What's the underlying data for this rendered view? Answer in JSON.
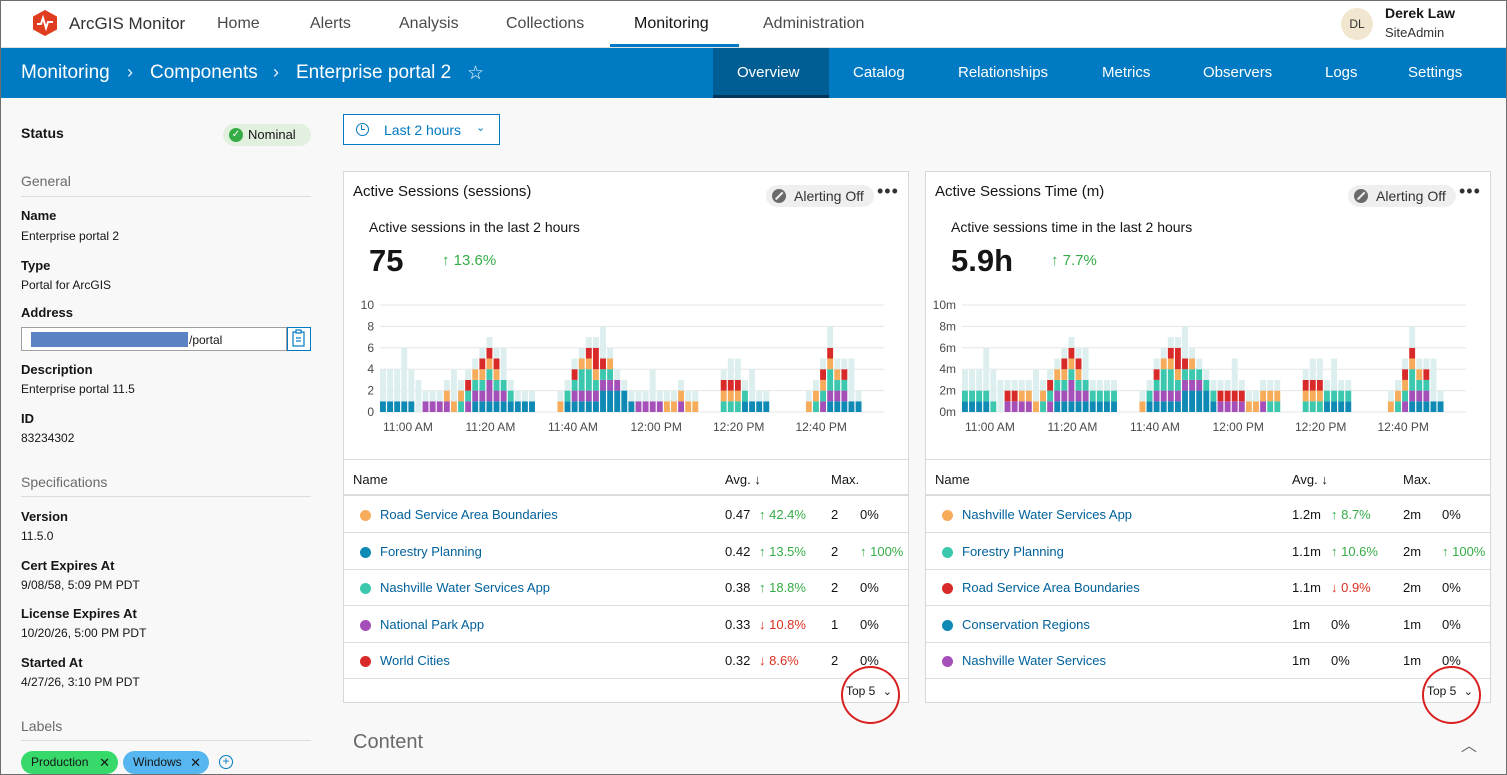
{
  "app": {
    "name": "ArcGIS Monitor"
  },
  "nav": {
    "items": [
      "Home",
      "Alerts",
      "Analysis",
      "Collections",
      "Monitoring",
      "Administration"
    ],
    "active": "Monitoring"
  },
  "user": {
    "initials": "DL",
    "name": "Derek Law",
    "role": "SiteAdmin"
  },
  "breadcrumb": [
    "Monitoring",
    "Components",
    "Enterprise portal 2"
  ],
  "subtabs": {
    "items": [
      "Overview",
      "Catalog",
      "Relationships",
      "Metrics",
      "Observers",
      "Logs",
      "Settings"
    ],
    "active": "Overview"
  },
  "sidebar": {
    "status_label": "Status",
    "status_value": "Nominal",
    "general_heading": "General",
    "name_label": "Name",
    "name_value": "Enterprise portal 2",
    "type_label": "Type",
    "type_value": "Portal for ArcGIS",
    "address_label": "Address",
    "address_suffix": "/portal",
    "description_label": "Description",
    "description_value": "Enterprise portal 11.5",
    "id_label": "ID",
    "id_value": "83234302",
    "specs_heading": "Specifications",
    "version_label": "Version",
    "version_value": "11.5.0",
    "cert_label": "Cert Expires At",
    "cert_value": "9/08/58, 5:09 PM PDT",
    "license_label": "License Expires At",
    "license_value": "10/20/26, 5:00 PM PDT",
    "started_label": "Started At",
    "started_value": "4/27/26, 3:10 PM PDT",
    "labels_heading": "Labels",
    "tags": [
      {
        "label": "Production",
        "color": "#36d96a"
      },
      {
        "label": "Windows",
        "color": "#56b6ef"
      }
    ]
  },
  "time_filter": {
    "label": "Last 2 hours"
  },
  "colors": {
    "orange": "#f7ac5c",
    "blue": "#0f8ab4",
    "teal": "#3cc8ae",
    "purple": "#a550b8",
    "red": "#d92a2a",
    "ghost": "#dceeee"
  },
  "cards": [
    {
      "title": "Active Sessions (sessions)",
      "alert": "Alerting Off",
      "subtitle": "Active sessions in the last 2 hours",
      "value": "75",
      "delta": "↑ 13.6%",
      "table_headers": {
        "name": "Name",
        "avg": "Avg. ↓",
        "max": "Max."
      },
      "rows": [
        {
          "color": "#f7ac5c",
          "name": "Road Service Area Boundaries",
          "avg": "0.47",
          "avg_change": "↑ 42.4%",
          "avg_dir": "up",
          "max": "2",
          "max_change": "0%",
          "max_dir": ""
        },
        {
          "color": "#0f8ab4",
          "name": "Forestry Planning",
          "avg": "0.42",
          "avg_change": "↑ 13.5%",
          "avg_dir": "up",
          "max": "2",
          "max_change": "↑ 100%",
          "max_dir": "up"
        },
        {
          "color": "#3cc8ae",
          "name": "Nashville Water Services App",
          "avg": "0.38",
          "avg_change": "↑ 18.8%",
          "avg_dir": "up",
          "max": "2",
          "max_change": "0%",
          "max_dir": ""
        },
        {
          "color": "#a550b8",
          "name": "National Park App",
          "avg": "0.33",
          "avg_change": "↓ 10.8%",
          "avg_dir": "down",
          "max": "1",
          "max_change": "0%",
          "max_dir": ""
        },
        {
          "color": "#d92a2a",
          "name": "World Cities",
          "avg": "0.32",
          "avg_change": "↓ 8.6%",
          "avg_dir": "down",
          "max": "2",
          "max_change": "0%",
          "max_dir": ""
        }
      ],
      "top_n": "Top 5"
    },
    {
      "title": "Active Sessions Time (m)",
      "alert": "Alerting Off",
      "subtitle": "Active sessions time in the last 2 hours",
      "value": "5.9h",
      "delta": "↑ 7.7%",
      "table_headers": {
        "name": "Name",
        "avg": "Avg. ↓",
        "max": "Max."
      },
      "rows": [
        {
          "color": "#f7ac5c",
          "name": "Nashville Water Services App",
          "avg": "1.2m",
          "avg_change": "↑ 8.7%",
          "avg_dir": "up",
          "max": "2m",
          "max_change": "0%",
          "max_dir": ""
        },
        {
          "color": "#3cc8ae",
          "name": "Forestry Planning",
          "avg": "1.1m",
          "avg_change": "↑ 10.6%",
          "avg_dir": "up",
          "max": "2m",
          "max_change": "↑ 100%",
          "max_dir": "up"
        },
        {
          "color": "#d92a2a",
          "name": "Road Service Area Boundaries",
          "avg": "1.1m",
          "avg_change": "↓ 0.9%",
          "avg_dir": "down",
          "max": "2m",
          "max_change": "0%",
          "max_dir": ""
        },
        {
          "color": "#0f8ab4",
          "name": "Conservation Regions",
          "avg": "1m",
          "avg_change": "0%",
          "avg_dir": "",
          "max": "1m",
          "max_change": "0%",
          "max_dir": ""
        },
        {
          "color": "#a550b8",
          "name": "Nashville Water Services",
          "avg": "1m",
          "avg_change": "0%",
          "avg_dir": "",
          "max": "1m",
          "max_change": "0%",
          "max_dir": ""
        }
      ],
      "top_n": "Top 5"
    }
  ],
  "content_heading": "Content",
  "chart_data": [
    {
      "type": "bar",
      "title": "Active Sessions (sessions)",
      "y_ticks": [
        "10",
        "8",
        "6",
        "4",
        "2",
        "0"
      ],
      "ylim": [
        0,
        10
      ],
      "x_ticks": [
        "11:00 AM",
        "11:20 AM",
        "11:40 AM",
        "12:00 PM",
        "12:20 PM",
        "12:40 PM"
      ],
      "stacked": true,
      "bars": [
        [
          1,
          0,
          0,
          0,
          0,
          2
        ],
        [
          1,
          0,
          0,
          0,
          0,
          2
        ],
        [
          1,
          0,
          0,
          0,
          0,
          2
        ],
        [
          1,
          0,
          0,
          0,
          0,
          2
        ],
        [
          1,
          0,
          0,
          0,
          0,
          2
        ],
        [
          0,
          0,
          0,
          0,
          0,
          2
        ],
        [
          0,
          1,
          0,
          0,
          0,
          0
        ],
        [
          0,
          1,
          0,
          0,
          0,
          0
        ],
        [
          0,
          1,
          0,
          0,
          0,
          0
        ],
        [
          0,
          1,
          0,
          1,
          0,
          0
        ],
        [
          0,
          0,
          0,
          1,
          0,
          0
        ],
        [
          0,
          0,
          1,
          1,
          0,
          0
        ],
        [
          0,
          1,
          1,
          0,
          1,
          0
        ],
        [
          1,
          1,
          1,
          1,
          0,
          0
        ],
        [
          1,
          1,
          1,
          1,
          1,
          0
        ],
        [
          1,
          2,
          1,
          1,
          1,
          0
        ],
        [
          1,
          1,
          1,
          1,
          1,
          0
        ],
        [
          1,
          1,
          1,
          0,
          0,
          0
        ],
        [
          1,
          0,
          1,
          0,
          0,
          0
        ],
        [
          1,
          0,
          0,
          0,
          0,
          0
        ],
        [
          1,
          0,
          0,
          0,
          0,
          0
        ],
        [
          1,
          0,
          0,
          0,
          0,
          0
        ],
        [
          0,
          0,
          0,
          0,
          0,
          0
        ],
        [
          0,
          0,
          0,
          0,
          0,
          0
        ],
        [
          0,
          0,
          0,
          0,
          0,
          0
        ],
        [
          0,
          0,
          0,
          1,
          0,
          0
        ],
        [
          1,
          0,
          1,
          0,
          0,
          0
        ],
        [
          1,
          1,
          1,
          0,
          1,
          0
        ],
        [
          1,
          1,
          2,
          1,
          0,
          0
        ],
        [
          1,
          1,
          2,
          1,
          1,
          0
        ],
        [
          1,
          1,
          1,
          1,
          2,
          0
        ],
        [
          2,
          1,
          1,
          0,
          1,
          0
        ],
        [
          2,
          1,
          1,
          1,
          0,
          0
        ],
        [
          2,
          1,
          0,
          0,
          0,
          0
        ],
        [
          2,
          0,
          0,
          0,
          0,
          0
        ],
        [
          1,
          0,
          0,
          0,
          0,
          0
        ],
        [
          0,
          1,
          0,
          0,
          0,
          0
        ],
        [
          0,
          1,
          0,
          0,
          0,
          0
        ],
        [
          0,
          1,
          0,
          0,
          0,
          0
        ],
        [
          0,
          1,
          0,
          0,
          0,
          0
        ],
        [
          0,
          0,
          0,
          1,
          0,
          0
        ],
        [
          0,
          0,
          0,
          1,
          0,
          0
        ],
        [
          0,
          1,
          0,
          1,
          0,
          0
        ],
        [
          0,
          0,
          0,
          1,
          0,
          0
        ],
        [
          0,
          0,
          0,
          1,
          0,
          0
        ],
        [
          0,
          0,
          0,
          0,
          0,
          0
        ],
        [
          0,
          0,
          0,
          0,
          0,
          0
        ],
        [
          0,
          0,
          0,
          0,
          0,
          0
        ],
        [
          0,
          0,
          1,
          1,
          1,
          0
        ],
        [
          0,
          0,
          1,
          1,
          1,
          1
        ],
        [
          0,
          0,
          1,
          1,
          1,
          1
        ],
        [
          1,
          0,
          1,
          0,
          0,
          0
        ],
        [
          1,
          0,
          0,
          0,
          0,
          0
        ],
        [
          1,
          0,
          0,
          0,
          0,
          0
        ],
        [
          1,
          0,
          0,
          0,
          0,
          0
        ],
        [
          0,
          0,
          0,
          0,
          0,
          0
        ],
        [
          0,
          0,
          0,
          0,
          0,
          0
        ],
        [
          0,
          0,
          0,
          0,
          0,
          0
        ],
        [
          0,
          0,
          0,
          0,
          0,
          0
        ],
        [
          0,
          0,
          0,
          0,
          0,
          0
        ],
        [
          0,
          0,
          0,
          1,
          0,
          0
        ],
        [
          0,
          0,
          1,
          1,
          0,
          0
        ],
        [
          0,
          1,
          1,
          1,
          1,
          0
        ],
        [
          1,
          1,
          2,
          1,
          1,
          1
        ],
        [
          1,
          1,
          1,
          1,
          0,
          0
        ],
        [
          1,
          1,
          1,
          0,
          1,
          0
        ],
        [
          1,
          0,
          0,
          0,
          0,
          1
        ],
        [
          1,
          0,
          0,
          0,
          0,
          0
        ],
        [
          0,
          0,
          0,
          0,
          0,
          0
        ],
        [
          0,
          0,
          0,
          0,
          0,
          0
        ],
        [
          0,
          0,
          0,
          0,
          0,
          0
        ]
      ]
    },
    {
      "type": "bar",
      "title": "Active Sessions Time (m)",
      "y_ticks": [
        "10m",
        "8m",
        "6m",
        "4m",
        "2m",
        "0m"
      ],
      "ylim": [
        0,
        10
      ],
      "x_ticks": [
        "11:00 AM",
        "11:20 AM",
        "11:40 AM",
        "12:00 PM",
        "12:20 PM",
        "12:40 PM"
      ],
      "stacked": true,
      "bars": [
        [
          1,
          0,
          1,
          0,
          0,
          1
        ],
        [
          1,
          0,
          1,
          0,
          0,
          1
        ],
        [
          1,
          0,
          1,
          0,
          0,
          1
        ],
        [
          1,
          0,
          1,
          0,
          0,
          1
        ],
        [
          0,
          0,
          1,
          0,
          0,
          2
        ],
        [
          0,
          0,
          0,
          0,
          0,
          2
        ],
        [
          0,
          1,
          0,
          0,
          1,
          0
        ],
        [
          0,
          1,
          0,
          0,
          1,
          0
        ],
        [
          0,
          1,
          0,
          1,
          0,
          0
        ],
        [
          0,
          1,
          0,
          1,
          0,
          0
        ],
        [
          0,
          0,
          0,
          1,
          0,
          0
        ],
        [
          0,
          0,
          1,
          1,
          0,
          0
        ],
        [
          0,
          1,
          1,
          0,
          1,
          0
        ],
        [
          1,
          1,
          1,
          1,
          0,
          0
        ],
        [
          1,
          1,
          1,
          1,
          1,
          0
        ],
        [
          1,
          2,
          1,
          1,
          1,
          0
        ],
        [
          1,
          1,
          1,
          1,
          1,
          0
        ],
        [
          1,
          1,
          1,
          0,
          0,
          0
        ],
        [
          1,
          0,
          1,
          0,
          0,
          0
        ],
        [
          1,
          0,
          1,
          0,
          0,
          0
        ],
        [
          1,
          0,
          1,
          0,
          0,
          0
        ],
        [
          1,
          0,
          1,
          0,
          0,
          0
        ],
        [
          0,
          0,
          0,
          0,
          0,
          0
        ],
        [
          0,
          0,
          0,
          0,
          0,
          0
        ],
        [
          0,
          0,
          0,
          0,
          0,
          0
        ],
        [
          0,
          0,
          0,
          1,
          0,
          0
        ],
        [
          1,
          0,
          1,
          0,
          0,
          0
        ],
        [
          1,
          1,
          1,
          0,
          1,
          0
        ],
        [
          1,
          1,
          2,
          1,
          0,
          0
        ],
        [
          1,
          1,
          2,
          1,
          1,
          0
        ],
        [
          1,
          1,
          1,
          1,
          2,
          0
        ],
        [
          2,
          1,
          1,
          0,
          1,
          0
        ],
        [
          2,
          1,
          1,
          1,
          0,
          0
        ],
        [
          2,
          1,
          1,
          0,
          0,
          0
        ],
        [
          2,
          0,
          1,
          0,
          0,
          0
        ],
        [
          1,
          0,
          1,
          0,
          0,
          0
        ],
        [
          0,
          1,
          0,
          0,
          1,
          0
        ],
        [
          0,
          1,
          0,
          0,
          1,
          0
        ],
        [
          0,
          1,
          0,
          0,
          1,
          0
        ],
        [
          0,
          1,
          0,
          0,
          1,
          0
        ],
        [
          0,
          0,
          0,
          1,
          0,
          0
        ],
        [
          0,
          0,
          0,
          1,
          0,
          0
        ],
        [
          0,
          1,
          0,
          1,
          0,
          0
        ],
        [
          0,
          0,
          1,
          1,
          0,
          0
        ],
        [
          0,
          0,
          1,
          1,
          0,
          0
        ],
        [
          0,
          0,
          0,
          0,
          0,
          0
        ],
        [
          0,
          0,
          0,
          0,
          0,
          0
        ],
        [
          0,
          0,
          0,
          0,
          0,
          0
        ],
        [
          0,
          0,
          1,
          1,
          1,
          0
        ],
        [
          0,
          0,
          1,
          1,
          1,
          1
        ],
        [
          0,
          0,
          1,
          1,
          1,
          1
        ],
        [
          1,
          0,
          1,
          0,
          0,
          0
        ],
        [
          1,
          0,
          1,
          0,
          0,
          0
        ],
        [
          1,
          0,
          1,
          0,
          0,
          0
        ],
        [
          1,
          0,
          1,
          0,
          0,
          0
        ],
        [
          0,
          0,
          0,
          0,
          0,
          0
        ],
        [
          0,
          0,
          0,
          0,
          0,
          0
        ],
        [
          0,
          0,
          0,
          0,
          0,
          0
        ],
        [
          0,
          0,
          0,
          0,
          0,
          0
        ],
        [
          0,
          0,
          0,
          0,
          0,
          0
        ],
        [
          0,
          0,
          0,
          1,
          0,
          0
        ],
        [
          0,
          0,
          1,
          1,
          0,
          0
        ],
        [
          0,
          1,
          1,
          1,
          1,
          0
        ],
        [
          1,
          1,
          2,
          1,
          1,
          1
        ],
        [
          1,
          1,
          1,
          1,
          0,
          0
        ],
        [
          1,
          1,
          1,
          0,
          1,
          0
        ],
        [
          1,
          0,
          0,
          0,
          0,
          1
        ],
        [
          1,
          0,
          0,
          0,
          0,
          0
        ],
        [
          0,
          0,
          0,
          0,
          0,
          0
        ],
        [
          0,
          0,
          0,
          0,
          0,
          0
        ],
        [
          0,
          0,
          0,
          0,
          0,
          0
        ]
      ]
    }
  ]
}
